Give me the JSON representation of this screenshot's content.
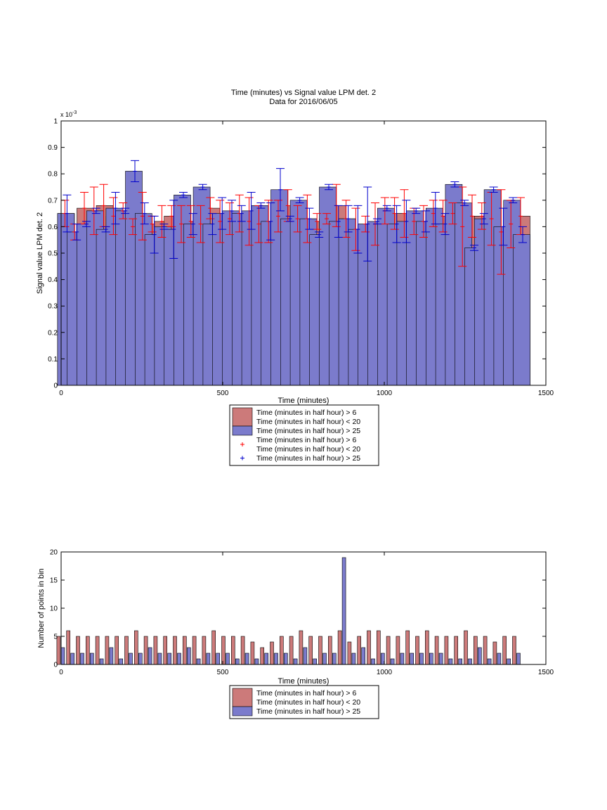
{
  "chart_data": [
    {
      "type": "bar",
      "title": "Time (minutes) vs Signal value LPM det. 2",
      "subtitle": "Data for 2016/06/05",
      "xlabel": "Time (minutes)",
      "ylabel": "Signal value LPM det. 2",
      "y_exponent_label": "x 10",
      "y_exponent_power": "-3",
      "xlim": [
        0,
        1500
      ],
      "ylim": [
        0,
        0.001
      ],
      "x_ticks": [
        "0",
        "500",
        "1000",
        "1500"
      ],
      "y_ticks": [
        "0",
        "0.1",
        "0.2",
        "0.3",
        "0.4",
        "0.5",
        "0.6",
        "0.7",
        "0.8",
        "0.9",
        "1"
      ],
      "grid": false,
      "legend_position": "below",
      "legend": [
        {
          "kind": "bar",
          "color": "#cc7a7a",
          "lines": [
            "Time (minutes in half hour) > 6",
            "Time (minutes in half hour) < 20"
          ]
        },
        {
          "kind": "bar",
          "color": "#7b7bcc",
          "lines": [
            "Time (minutes in half hour) > 25"
          ]
        },
        {
          "kind": "marker",
          "color": "#ff0000",
          "lines": [
            "Time (minutes in half hour) > 6",
            "Time (minutes in half hour) < 20"
          ]
        },
        {
          "kind": "marker",
          "color": "#0000cc",
          "lines": [
            "Time (minutes in half hour) > 25"
          ]
        }
      ],
      "x": [
        15,
        45,
        75,
        105,
        135,
        165,
        195,
        225,
        255,
        285,
        315,
        345,
        375,
        405,
        435,
        465,
        495,
        525,
        555,
        585,
        615,
        645,
        675,
        705,
        735,
        765,
        795,
        825,
        855,
        885,
        915,
        945,
        975,
        1005,
        1035,
        1065,
        1095,
        1125,
        1155,
        1185,
        1215,
        1245,
        1275,
        1305,
        1335,
        1365,
        1395,
        1425
      ],
      "series": [
        {
          "name": "Time (minutes in half hour) > 6 Time (minutes in half hour) < 20",
          "color": "#cc7a7a",
          "values": [
            0.00065,
            0.00058,
            0.00067,
            0.00066,
            0.00068,
            0.00064,
            0.00066,
            0.0006,
            0.00064,
            0.00061,
            0.00062,
            0.00064,
            0.00061,
            0.00062,
            0.00061,
            0.00067,
            0.00062,
            0.00063,
            0.00065,
            0.00062,
            0.00061,
            0.00062,
            0.00064,
            0.00068,
            0.00063,
            0.00063,
            0.00062,
            0.00063,
            0.00068,
            0.00063,
            0.00059,
            0.00061,
            0.00061,
            0.00066,
            0.00065,
            0.00065,
            0.00062,
            0.00062,
            0.00065,
            0.00064,
            0.00065,
            0.0006,
            0.00064,
            0.00064,
            0.00063,
            0.00058,
            0.00061,
            0.00064
          ],
          "error": [
            5e-05,
            3e-05,
            6e-05,
            9e-05,
            8e-05,
            7e-05,
            3e-05,
            3e-05,
            9e-05,
            3e-05,
            6e-05,
            4e-05,
            7e-05,
            6e-05,
            7e-05,
            4e-05,
            8e-05,
            6e-05,
            7e-05,
            9e-05,
            7e-05,
            8e-05,
            6e-05,
            6e-05,
            5e-05,
            9e-05,
            3e-05,
            2e-05,
            8e-05,
            7e-05,
            8e-05,
            3e-05,
            8e-05,
            5e-05,
            6e-05,
            9e-05,
            5e-05,
            6e-05,
            5e-05,
            6e-05,
            4e-05,
            0.00015,
            8e-05,
            5e-05,
            0.0001,
            0.00016,
            9e-05,
            7e-05
          ]
        },
        {
          "name": "Time (minutes in half hour) > 25",
          "color": "#7b7bcc",
          "values": [
            0.00065,
            0.00058,
            0.00061,
            0.00066,
            0.00059,
            0.00067,
            0.00066,
            0.00081,
            0.00065,
            0.00057,
            0.0006,
            0.00059,
            0.00072,
            0.00061,
            0.00075,
            0.00061,
            0.00065,
            0.00066,
            0.00065,
            0.00066,
            0.00068,
            0.00062,
            0.00074,
            0.00063,
            0.0007,
            0.00063,
            0.00057,
            0.00075,
            0.00062,
            0.00063,
            0.00059,
            0.00061,
            0.00062,
            0.00067,
            0.00061,
            0.00062,
            0.00066,
            0.00062,
            0.00067,
            0.00061,
            0.00076,
            0.00069,
            0.00052,
            0.00063,
            0.00074,
            0.0006,
            0.0007,
            0.00057
          ],
          "error": [
            7e-05,
            3e-05,
            1e-05,
            1e-05,
            1e-05,
            6e-05,
            1e-05,
            4e-05,
            4e-05,
            7e-05,
            1e-05,
            0.00011,
            1e-05,
            4e-05,
            1e-05,
            4e-05,
            6e-05,
            4e-05,
            3e-05,
            7e-05,
            1e-05,
            7e-05,
            8e-05,
            1e-05,
            1e-05,
            4e-05,
            1e-05,
            1e-05,
            6e-05,
            5e-05,
            9e-05,
            0.00014,
            1e-05,
            1e-05,
            7e-05,
            8e-05,
            1e-05,
            4e-05,
            6e-05,
            4e-05,
            1e-05,
            1e-05,
            1e-05,
            2e-05,
            1e-05,
            7e-05,
            1e-05,
            3e-05
          ]
        }
      ]
    },
    {
      "type": "bar",
      "title": "",
      "xlabel": "Time (minutes)",
      "ylabel": "Number of points in bin",
      "xlim": [
        0,
        1500
      ],
      "ylim": [
        0,
        20
      ],
      "x_ticks": [
        "0",
        "500",
        "1000",
        "1500"
      ],
      "y_ticks": [
        "0",
        "5",
        "10",
        "15",
        "20"
      ],
      "grid": false,
      "legend_position": "below",
      "legend": [
        {
          "kind": "bar",
          "color": "#cc7a7a",
          "lines": [
            "Time (minutes in half hour) > 6",
            "Time (minutes in half hour) < 20"
          ]
        },
        {
          "kind": "bar",
          "color": "#7b7bcc",
          "lines": [
            "Time (minutes in half hour) > 25"
          ]
        }
      ],
      "x": [
        15,
        45,
        75,
        105,
        135,
        165,
        195,
        225,
        255,
        285,
        315,
        345,
        375,
        405,
        435,
        465,
        495,
        525,
        555,
        585,
        615,
        645,
        675,
        705,
        735,
        765,
        795,
        825,
        855,
        885,
        915,
        945,
        975,
        1005,
        1035,
        1065,
        1095,
        1125,
        1155,
        1185,
        1215,
        1245,
        1275,
        1305,
        1335,
        1365,
        1395,
        1425
      ],
      "series": [
        {
          "name": "Time (minutes in half hour) > 6 Time (minutes in half hour) < 20",
          "color": "#cc7a7a",
          "values": [
            5,
            6,
            5,
            5,
            5,
            5,
            5,
            5,
            6,
            5,
            5,
            5,
            5,
            5,
            5,
            5,
            6,
            5,
            5,
            5,
            4,
            3,
            4,
            5,
            5,
            6,
            5,
            5,
            5,
            6,
            4,
            5,
            6,
            6,
            5,
            5,
            6,
            5,
            6,
            5,
            5,
            5,
            6,
            5,
            5,
            4,
            5,
            5
          ]
        },
        {
          "name": "Time (minutes in half hour) > 25",
          "color": "#7b7bcc",
          "values": [
            3,
            2,
            2,
            2,
            1,
            3,
            1,
            2,
            2,
            3,
            2,
            2,
            2,
            3,
            1,
            2,
            2,
            2,
            1,
            2,
            1,
            2,
            2,
            2,
            1,
            3,
            1,
            2,
            2,
            19,
            2,
            3,
            1,
            2,
            1,
            2,
            2,
            2,
            2,
            2,
            1,
            1,
            1,
            3,
            1,
            2,
            1,
            2
          ]
        }
      ]
    }
  ]
}
